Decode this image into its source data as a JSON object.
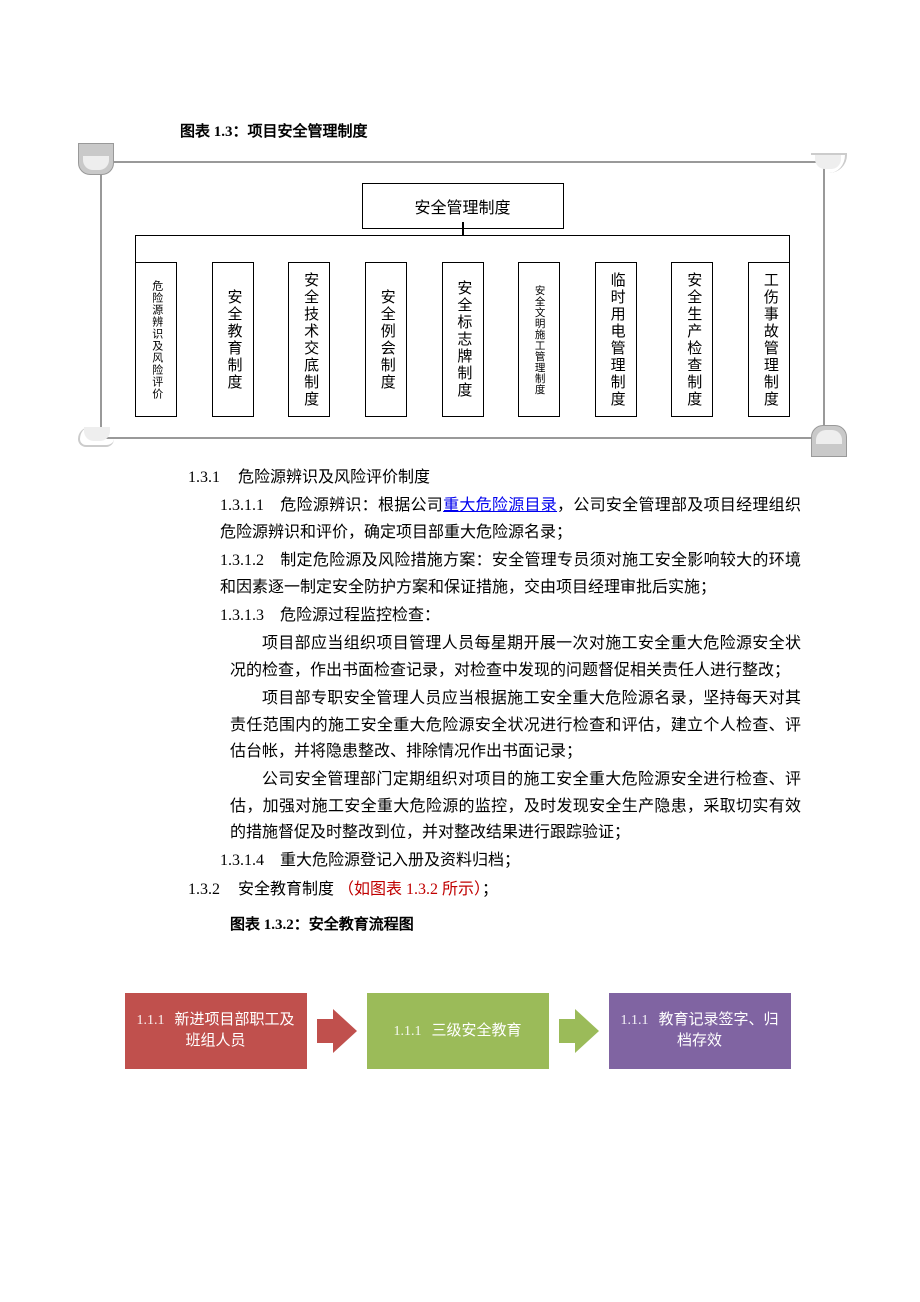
{
  "figure1": {
    "caption": "图表 1.3：项目安全管理制度",
    "root": "安全管理制度",
    "leaves": [
      {
        "text": "危险源辨识及风险评价",
        "size": "small"
      },
      {
        "text": "安全教育制度",
        "size": ""
      },
      {
        "text": "安全技术交底制度",
        "size": ""
      },
      {
        "text": "安全例会制度",
        "size": ""
      },
      {
        "text": "安全标志牌制度",
        "size": ""
      },
      {
        "text": "安全文明施工管理制度",
        "size": "smaller"
      },
      {
        "text": "临时用电管理制度",
        "size": ""
      },
      {
        "text": "安全生产检查制度",
        "size": ""
      },
      {
        "text": "工伤事故管理制度",
        "size": ""
      }
    ]
  },
  "section": {
    "n131": "1.3.1",
    "t131": "危险源辨识及风险评价制度",
    "n1311": "1.3.1.1",
    "p1311a": "危险源辨识：根据公司",
    "p1311link": "重大危险源目录",
    "p1311b": "，公司安全管理部及项目经理组织危险源辨识和评价，确定项目部重大危险源名录；",
    "n1312": "1.3.1.2",
    "p1312": "制定危险源及风险措施方案：安全管理专员须对施工安全影响较大的环境和因素逐一制定安全防护方案和保证措施，交由项目经理审批后实施；",
    "n1313": "1.3.1.3",
    "t1313": "危险源过程监控检查：",
    "pA": "项目部应当组织项目管理人员每星期开展一次对施工安全重大危险源安全状况的检查，作出书面检查记录，对检查中发现的问题督促相关责任人进行整改；",
    "pB": "项目部专职安全管理人员应当根据施工安全重大危险源名录，坚持每天对其责任范围内的施工安全重大危险源安全状况进行检查和评估，建立个人检查、评估台帐，并将隐患整改、排除情况作出书面记录；",
    "pC": "公司安全管理部门定期组织对项目的施工安全重大危险源安全进行检查、评估，加强对施工安全重大危险源的监控，及时发现安全生产隐患，采取切实有效的措施督促及时整改到位，并对整改结果进行跟踪验证；",
    "n1314": "1.3.1.4",
    "p1314": "重大危险源登记入册及资料归档；",
    "n132": "1.3.2",
    "t132": "安全教育制度",
    "t132red": "（如图表 1.3.2 所示）",
    "t132tail": "；"
  },
  "figure2": {
    "caption": "图表 1.3.2：安全教育流程图",
    "boxes": [
      {
        "pre": "1.1.1",
        "text": "新进项目部职工及班组人员",
        "bg": "#c0504d"
      },
      {
        "pre": "1.1.1",
        "text": "三级安全教育",
        "bg": "#9bbb59"
      },
      {
        "pre": "1.1.1",
        "text": "教育记录签字、归档存效",
        "bg": "#8064a2"
      }
    ],
    "arrow_colors": [
      "#c0504d",
      "#9bbb59"
    ]
  },
  "colors": {
    "text": "#000000",
    "link": "#0000ee",
    "red": "#c00000",
    "scroll_border": "#999999"
  }
}
